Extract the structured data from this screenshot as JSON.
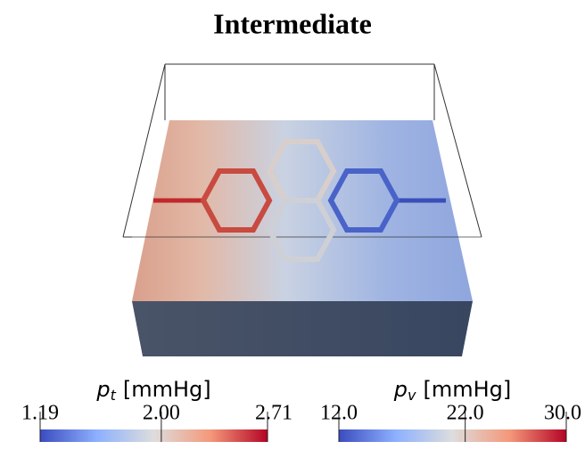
{
  "title": "Intermediate",
  "colorbars": [
    {
      "symbol": "p",
      "subscript": "t",
      "unit": "[mmHg]",
      "range": [
        1.19,
        2.71
      ],
      "ticks": [
        1.19,
        {
          "value": 2,
          "label": "2.00"
        },
        2.71
      ]
    },
    {
      "symbol": "p",
      "subscript": "v",
      "unit": "[mmHg]",
      "range": [
        12,
        30
      ],
      "ticks": [
        {
          "value": 12,
          "label": "12.0"
        },
        {
          "value": 22,
          "label": "22.0"
        },
        {
          "value": 30,
          "label": "30.0"
        }
      ]
    }
  ]
}
